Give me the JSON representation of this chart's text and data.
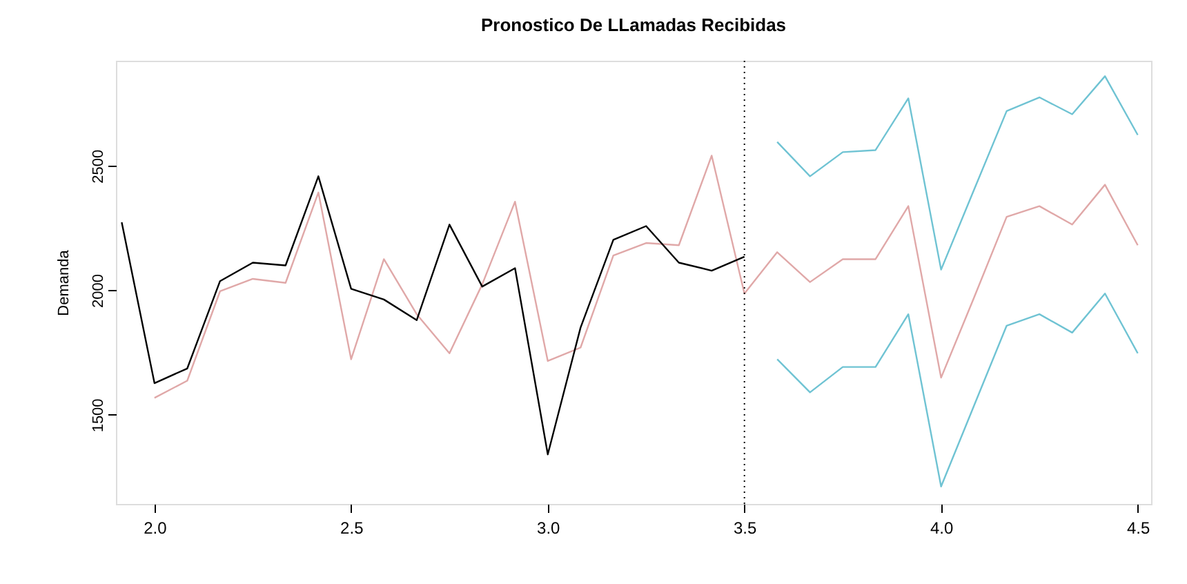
{
  "chart_data": {
    "type": "line",
    "title": "Pronostico De LLamadas Recibidas",
    "ylabel": "Demanda",
    "xlim": [
      1.902,
      4.534
    ],
    "ylim": [
      1142,
      2922
    ],
    "xticks": [
      {
        "value": 2,
        "label": "2.0"
      },
      2.5,
      {
        "value": 3,
        "label": "3.0"
      },
      3.5,
      {
        "value": 4,
        "label": "4.0"
      },
      4.5
    ],
    "yticks": [
      1500,
      2000,
      2500
    ],
    "grid": false,
    "legend": false,
    "marker": "none",
    "line_style": "solid",
    "ref_lines": [
      {
        "axis": "x",
        "value": 3.5,
        "color": "#000000",
        "line_style": "dotted"
      }
    ],
    "series": [
      {
        "color": "#e0a8a8",
        "x": [
          2.0,
          2.0833,
          2.1667,
          2.25,
          2.3333,
          2.4167,
          2.5,
          2.5833,
          2.6667,
          2.75,
          2.8333,
          2.9167,
          3.0,
          3.0833,
          3.1667,
          3.25,
          3.3333,
          3.4167,
          3.5,
          3.5833,
          3.6667,
          3.75,
          3.8333,
          3.9167,
          4.0,
          4.0833,
          4.1667,
          4.25,
          4.3333,
          4.4167,
          4.5
        ],
        "values": [
          1568,
          1637,
          1996,
          2046,
          2030,
          2393,
          1723,
          2125,
          1904,
          1747,
          2024,
          2356,
          1716,
          1770,
          2140,
          2190,
          2181,
          2541,
          1987,
          2153,
          2033,
          2125,
          2125,
          2338,
          1649,
          1969,
          2295,
          2338,
          2264,
          2424,
          2181
        ]
      },
      {
        "color": "#000000",
        "x": [
          1.9167,
          2.0,
          2.0833,
          2.1667,
          2.25,
          2.3333,
          2.4167,
          2.5,
          2.5833,
          2.6667,
          2.75,
          2.8333,
          2.9167,
          3.0,
          3.0833,
          3.1667,
          3.25,
          3.3333,
          3.4167,
          3.5
        ],
        "values": [
          2273,
          1627,
          1686,
          2037,
          2111,
          2100,
          2458,
          2006,
          1963,
          1880,
          2264,
          2015,
          2089,
          1341,
          1850,
          2203,
          2258,
          2111,
          2079,
          2135
        ]
      },
      {
        "color": "#6fc3d3",
        "x": [
          3.5833,
          3.6667,
          3.75,
          3.8333,
          3.9167,
          4.0,
          4.0833,
          4.1667,
          4.25,
          4.3333,
          4.4167,
          4.5
        ],
        "values": [
          2596,
          2458,
          2555,
          2563,
          2771,
          2083,
          2402,
          2720,
          2775,
          2707,
          2860,
          2624
        ]
      },
      {
        "color": "#6fc3d3",
        "x": [
          3.5833,
          3.6667,
          3.75,
          3.8333,
          3.9167,
          4.0,
          4.0833,
          4.1667,
          4.25,
          4.3333,
          4.4167,
          4.5
        ],
        "values": [
          1723,
          1590,
          1692,
          1692,
          1904,
          1212,
          1535,
          1858,
          1904,
          1830,
          1987,
          1747
        ]
      }
    ]
  }
}
